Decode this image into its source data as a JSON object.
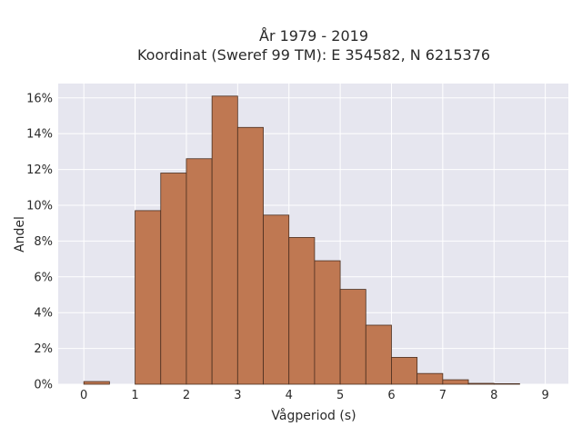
{
  "chart_data": {
    "type": "bar",
    "title_line1": "År 1979 - 2019",
    "title_line2": "Koordinat (Sweref 99 TM): E 354582, N 6215376",
    "xlabel": "Vågperiod (s)",
    "ylabel": "Andel",
    "xlim": [
      -0.5,
      9.45
    ],
    "ylim": [
      0,
      16.8
    ],
    "x_ticks": [
      0,
      1,
      2,
      3,
      4,
      5,
      6,
      7,
      8,
      9
    ],
    "x_tick_labels": [
      "0",
      "1",
      "2",
      "3",
      "4",
      "5",
      "6",
      "7",
      "8",
      "9"
    ],
    "y_ticks": [
      0,
      2,
      4,
      6,
      8,
      10,
      12,
      14,
      16
    ],
    "y_tick_labels": [
      "0%",
      "2%",
      "4%",
      "6%",
      "8%",
      "10%",
      "12%",
      "14%",
      "16%"
    ],
    "bin_width": 0.5,
    "bins": [
      {
        "x": 0.0,
        "value": 0.15
      },
      {
        "x": 1.0,
        "value": 9.7
      },
      {
        "x": 1.5,
        "value": 11.8
      },
      {
        "x": 2.0,
        "value": 12.6
      },
      {
        "x": 2.5,
        "value": 16.1
      },
      {
        "x": 3.0,
        "value": 14.35
      },
      {
        "x": 3.5,
        "value": 9.45
      },
      {
        "x": 4.0,
        "value": 8.2
      },
      {
        "x": 4.5,
        "value": 6.9
      },
      {
        "x": 5.0,
        "value": 5.3
      },
      {
        "x": 5.5,
        "value": 3.3
      },
      {
        "x": 6.0,
        "value": 1.5
      },
      {
        "x": 6.5,
        "value": 0.6
      },
      {
        "x": 7.0,
        "value": 0.25
      },
      {
        "x": 7.5,
        "value": 0.05
      },
      {
        "x": 8.0,
        "value": 0.03
      }
    ],
    "grid": true,
    "colors": {
      "bar_fill": "#bf7852",
      "bar_stroke": "#4a2e1f",
      "plot_bg": "#e6e6ef",
      "grid": "#ffffff"
    }
  }
}
